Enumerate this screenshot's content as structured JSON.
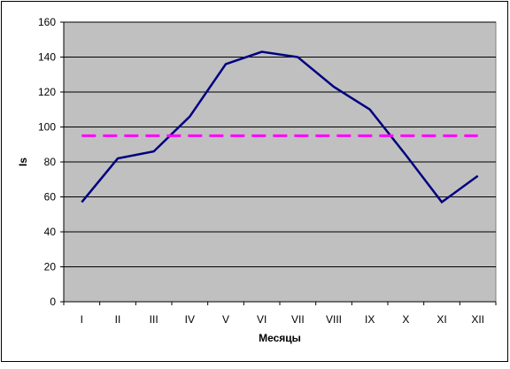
{
  "chart_data": {
    "type": "line",
    "x_label": "Месяцы",
    "y_label": "Is",
    "categories": [
      "I",
      "II",
      "III",
      "IV",
      "V",
      "VI",
      "VII",
      "VIII",
      "IX",
      "X",
      "XI",
      "XII"
    ],
    "series": [
      {
        "color": "#000080",
        "dashed": false,
        "values": [
          57,
          82,
          86,
          106,
          136,
          143,
          140,
          123,
          110,
          84,
          57,
          72
        ]
      },
      {
        "color": "#ff00ff",
        "dashed": true,
        "values": [
          95,
          95,
          95,
          95,
          95,
          95,
          95,
          95,
          95,
          95,
          95,
          95
        ]
      }
    ],
    "ylim": [
      0,
      160
    ],
    "yticks": [
      0,
      20,
      40,
      60,
      80,
      100,
      120,
      140,
      160
    ],
    "grid": true,
    "plot_background": "#c0c0c0"
  }
}
